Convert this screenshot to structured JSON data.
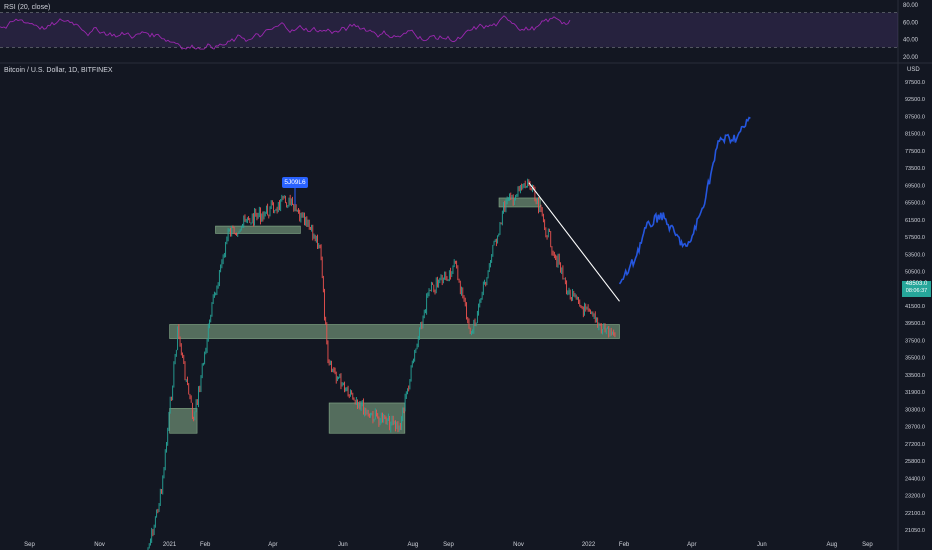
{
  "rsi_label": "RSI (20, close)",
  "rsi_ticks": [
    "80.00",
    "60.00",
    "40.00",
    "20.00"
  ],
  "symbol_label": "Bitcoin / U.S. Dollar, 1D, BITFINEX",
  "currency": "USD",
  "price_ticks": [
    "97500.0",
    "92500.0",
    "87500.0",
    "81500.0",
    "77500.0",
    "73500.0",
    "69500.0",
    "65500.0",
    "61500.0",
    "57500.0",
    "53500.0",
    "50500.0",
    "44500.0",
    "41500.0",
    "39500.0",
    "37500.0",
    "35500.0",
    "33500.0",
    "31900.0",
    "30300.0",
    "28700.0",
    "27200.0",
    "25800.0",
    "24400.0",
    "23200.0",
    "22100.0",
    "21050.0"
  ],
  "current_price": "48503.0",
  "countdown": "08:06:37",
  "annotation_label": "5J09L6",
  "x_ticks": [
    "Sep",
    "Nov",
    "2021",
    "Feb",
    "Apr",
    "Jun",
    "Aug",
    "Sep",
    "Nov",
    "2022",
    "Feb",
    "Apr",
    "Jun",
    "Aug",
    "Sep"
  ],
  "colors": {
    "background": "#131722",
    "up": "#26a69a",
    "down": "#ef5350",
    "projection": "#2962ff",
    "zone": "#a5d6a7",
    "rsi": "#9c27b0",
    "label": "#d1d4dc"
  },
  "chart_data": {
    "type": "candlestick",
    "title": "Bitcoin / U.S. Dollar, 1D, BITFINEX",
    "series": [
      {
        "name": "price",
        "x": [
          "2020-12-10",
          "2020-12-25",
          "2021-01-08",
          "2021-01-22",
          "2021-02-08",
          "2021-02-21",
          "2021-03-14",
          "2021-04-14",
          "2021-05-12",
          "2021-05-19",
          "2021-06-22",
          "2021-07-20",
          "2021-08-14",
          "2021-09-07",
          "2021-09-21",
          "2021-10-20",
          "2021-11-10",
          "2021-11-28",
          "2021-12-15",
          "2022-01-10",
          "2022-01-24"
        ],
        "y": [
          18500,
          24000,
          41500,
          30500,
          46000,
          58000,
          61000,
          64800,
          56000,
          37000,
          31500,
          29800,
          47000,
          52000,
          41000,
          64000,
          69000,
          57000,
          47000,
          42500,
          41000
        ]
      },
      {
        "name": "projection",
        "x": [
          "2022-01-28",
          "2022-02-10",
          "2022-02-20",
          "2022-03-05",
          "2022-03-20",
          "2022-03-28",
          "2022-04-10",
          "2022-04-25",
          "2022-05-10",
          "2022-05-22"
        ],
        "y": [
          48500,
          53000,
          59000,
          62000,
          57000,
          55000,
          63000,
          80000,
          80500,
          86000
        ]
      }
    ],
    "zones": [
      {
        "from": "2021-02-10",
        "to": "2021-04-25",
        "low": 58000,
        "high": 59500
      },
      {
        "from": "2021-01-01",
        "to": "2022-01-28",
        "low": 40500,
        "high": 42500
      },
      {
        "from": "2021-01-01",
        "to": "2021-01-25",
        "low": 29300,
        "high": 31900
      },
      {
        "from": "2021-05-20",
        "to": "2021-07-25",
        "low": 29300,
        "high": 32500
      },
      {
        "from": "2021-10-15",
        "to": "2021-11-20",
        "low": 63500,
        "high": 65500
      }
    ],
    "trendline": {
      "from": [
        "2021-11-10",
        69000
      ],
      "to": [
        "2022-01-28",
        46000
      ]
    },
    "rsi": {
      "name": "RSI (20, close)",
      "ylim": [
        20,
        80
      ]
    }
  }
}
